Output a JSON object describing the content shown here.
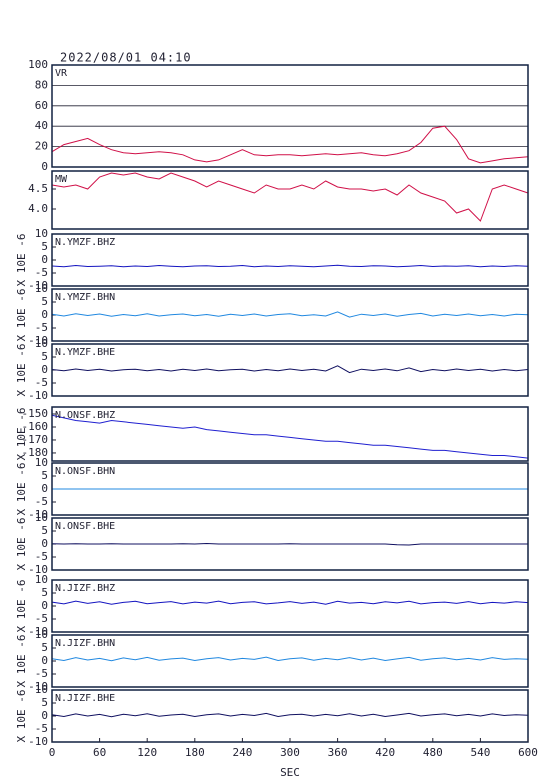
{
  "chart_data": [
    {
      "type": "line",
      "title": "2022/08/01 04:10",
      "label": "VR",
      "color": "#d01048",
      "grid": true,
      "x": [
        0,
        15,
        30,
        45,
        60,
        75,
        90,
        105,
        120,
        135,
        150,
        165,
        180,
        195,
        210,
        225,
        240,
        255,
        270,
        285,
        300,
        315,
        330,
        345,
        360,
        375,
        390,
        405,
        420,
        435,
        450,
        465,
        480,
        495,
        510,
        525,
        540,
        555,
        570,
        585,
        600
      ],
      "values": [
        15,
        22,
        25,
        28,
        22,
        17,
        14,
        13,
        14,
        15,
        14,
        12,
        7,
        5,
        7,
        12,
        17,
        12,
        11,
        12,
        12,
        11,
        12,
        13,
        12,
        13,
        14,
        12,
        11,
        13,
        16,
        24,
        38,
        40,
        27,
        8,
        4,
        6,
        8,
        9,
        10
      ],
      "xlim": [
        0,
        600
      ],
      "ylim": [
        0,
        100
      ],
      "yticks": [
        0,
        20,
        40,
        60,
        80,
        100
      ]
    },
    {
      "type": "line",
      "label": "MW",
      "color": "#d01048",
      "x": [
        0,
        15,
        30,
        45,
        60,
        75,
        90,
        105,
        120,
        135,
        150,
        165,
        180,
        195,
        210,
        225,
        240,
        255,
        270,
        285,
        300,
        315,
        330,
        345,
        360,
        375,
        390,
        405,
        420,
        435,
        450,
        465,
        480,
        495,
        510,
        525,
        540,
        555,
        570,
        585,
        600
      ],
      "values": [
        4.6,
        4.55,
        4.6,
        4.5,
        4.8,
        4.9,
        4.85,
        4.9,
        4.8,
        4.75,
        4.9,
        4.8,
        4.7,
        4.55,
        4.7,
        4.6,
        4.5,
        4.4,
        4.6,
        4.5,
        4.5,
        4.6,
        4.5,
        4.7,
        4.55,
        4.5,
        4.5,
        4.45,
        4.5,
        4.35,
        4.6,
        4.4,
        4.3,
        4.2,
        3.9,
        4.0,
        3.7,
        4.5,
        4.6,
        4.5,
        4.4
      ],
      "xlim": [
        0,
        600
      ],
      "ylim": [
        3.5,
        4.95
      ],
      "yticks": [
        {
          "value": 4.0,
          "label": "4.0"
        },
        4.5
      ]
    },
    {
      "type": "line",
      "label": "N.YMZF.BHZ",
      "ylabel": "X 10E -6",
      "color": "#1414c0",
      "x": [
        0,
        15,
        30,
        45,
        60,
        75,
        90,
        105,
        120,
        135,
        150,
        165,
        180,
        195,
        210,
        225,
        240,
        255,
        270,
        285,
        300,
        315,
        330,
        345,
        360,
        375,
        390,
        405,
        420,
        435,
        450,
        465,
        480,
        495,
        510,
        525,
        540,
        555,
        570,
        585,
        600
      ],
      "values": [
        -2.3,
        -2.6,
        -2.1,
        -2.5,
        -2.4,
        -2.2,
        -2.6,
        -2.3,
        -2.5,
        -2.1,
        -2.4,
        -2.6,
        -2.3,
        -2.2,
        -2.5,
        -2.4,
        -2.1,
        -2.6,
        -2.3,
        -2.5,
        -2.2,
        -2.4,
        -2.6,
        -2.3,
        -2.0,
        -2.4,
        -2.5,
        -2.2,
        -2.3,
        -2.6,
        -2.4,
        -2.1,
        -2.5,
        -2.3,
        -2.4,
        -2.2,
        -2.6,
        -2.3,
        -2.5,
        -2.2,
        -2.4
      ],
      "xlim": [
        0,
        600
      ],
      "ylim": [
        -10,
        10
      ],
      "yticks": [
        -10,
        -5,
        0,
        5,
        10
      ]
    },
    {
      "type": "line",
      "label": "N.YMZF.BHN",
      "ylabel": "X 10E -6",
      "color": "#2088e0",
      "x": [
        0,
        15,
        30,
        45,
        60,
        75,
        90,
        105,
        120,
        135,
        150,
        165,
        180,
        195,
        210,
        225,
        240,
        255,
        270,
        285,
        300,
        315,
        330,
        345,
        360,
        375,
        390,
        405,
        420,
        435,
        450,
        465,
        480,
        495,
        510,
        525,
        540,
        555,
        570,
        585,
        600
      ],
      "values": [
        0.3,
        -0.4,
        0.5,
        -0.2,
        0.4,
        -0.5,
        0.2,
        -0.3,
        0.5,
        -0.4,
        0.1,
        0.4,
        -0.3,
        0.2,
        -0.5,
        0.3,
        -0.2,
        0.4,
        -0.4,
        0.2,
        0.5,
        -0.3,
        0.1,
        -0.4,
        1.2,
        -0.8,
        0.3,
        -0.2,
        0.4,
        -0.5,
        0.2,
        0.6,
        -0.4,
        0.3,
        -0.2,
        0.4,
        -0.3,
        0.2,
        -0.4,
        0.3,
        0.1
      ],
      "xlim": [
        0,
        600
      ],
      "ylim": [
        -10,
        10
      ],
      "yticks": [
        -10,
        -5,
        0,
        5,
        10
      ]
    },
    {
      "type": "line",
      "label": "N.YMZF.BHE",
      "ylabel": "X 10E -6",
      "color": "#101060",
      "x": [
        0,
        15,
        30,
        45,
        60,
        75,
        90,
        105,
        120,
        135,
        150,
        165,
        180,
        195,
        210,
        225,
        240,
        255,
        270,
        285,
        300,
        315,
        330,
        345,
        360,
        375,
        390,
        405,
        420,
        435,
        450,
        465,
        480,
        495,
        510,
        525,
        540,
        555,
        570,
        585,
        600
      ],
      "values": [
        0.2,
        -0.3,
        0.4,
        -0.2,
        0.3,
        -0.4,
        0.1,
        0.3,
        -0.3,
        0.2,
        -0.4,
        0.3,
        -0.2,
        0.4,
        -0.3,
        0.1,
        0.3,
        -0.4,
        0.2,
        -0.3,
        0.4,
        -0.2,
        0.3,
        -0.4,
        1.6,
        -1.0,
        0.3,
        -0.2,
        0.4,
        -0.3,
        0.8,
        -0.6,
        0.2,
        -0.3,
        0.4,
        -0.2,
        0.3,
        -0.4,
        0.2,
        -0.3,
        0.2
      ],
      "xlim": [
        0,
        600
      ],
      "ylim": [
        -10,
        10
      ],
      "yticks": [
        -10,
        -5,
        0,
        5,
        10
      ]
    },
    {
      "type": "line",
      "label": "N.ONSF.BHZ",
      "ylabel": "X 10E -6",
      "color": "#2020d0",
      "x": [
        0,
        15,
        30,
        45,
        60,
        75,
        90,
        105,
        120,
        135,
        150,
        165,
        180,
        195,
        210,
        225,
        240,
        255,
        270,
        285,
        300,
        315,
        330,
        345,
        360,
        375,
        390,
        405,
        420,
        435,
        450,
        465,
        480,
        495,
        510,
        525,
        540,
        555,
        570,
        585,
        600
      ],
      "values": [
        -151,
        -153,
        -155,
        -156,
        -157,
        -155,
        -156,
        -157,
        -158,
        -159,
        -160,
        -161,
        -160,
        -162,
        -163,
        -164,
        -165,
        -166,
        -166,
        -167,
        -168,
        -169,
        -170,
        -171,
        -171,
        -172,
        -173,
        -174,
        -174,
        -175,
        -176,
        -177,
        -178,
        -178,
        -179,
        -180,
        -181,
        -182,
        -182,
        -183,
        -184
      ],
      "xlim": [
        0,
        600
      ],
      "ylim": [
        -186.2,
        -144.6
      ],
      "yticks": [
        -180,
        -170,
        -160,
        -150
      ]
    },
    {
      "type": "line",
      "label": "N.ONSF.BHN",
      "ylabel": "X 10E -6",
      "color": "#2088e0",
      "x": [
        0,
        15,
        30,
        45,
        60,
        75,
        90,
        105,
        120,
        135,
        150,
        165,
        180,
        195,
        210,
        225,
        240,
        255,
        270,
        285,
        300,
        315,
        330,
        345,
        360,
        375,
        390,
        405,
        420,
        435,
        450,
        465,
        480,
        495,
        510,
        525,
        540,
        555,
        570,
        585,
        600
      ],
      "values": [
        0,
        0,
        0,
        0,
        0,
        0,
        0,
        0,
        0,
        0,
        0,
        0,
        0,
        0,
        0,
        0,
        0,
        0,
        0,
        0,
        0,
        0,
        0,
        0,
        0,
        0,
        0,
        0,
        0,
        0,
        0,
        0,
        0,
        0,
        0,
        0,
        0,
        0,
        0,
        0,
        0
      ],
      "xlim": [
        0,
        600
      ],
      "ylim": [
        -10,
        10
      ],
      "yticks": [
        -10,
        -5,
        0,
        5,
        10
      ]
    },
    {
      "type": "line",
      "label": "N.ONSF.BHE",
      "ylabel": "X 10E -6",
      "color": "#101060",
      "x": [
        0,
        15,
        30,
        45,
        60,
        75,
        90,
        105,
        120,
        135,
        150,
        165,
        180,
        195,
        210,
        225,
        240,
        255,
        270,
        285,
        300,
        315,
        330,
        345,
        360,
        375,
        390,
        405,
        420,
        435,
        450,
        465,
        480,
        495,
        510,
        525,
        540,
        555,
        570,
        585,
        600
      ],
      "values": [
        0.1,
        0,
        0.1,
        0,
        0,
        0.1,
        0,
        0,
        0,
        0,
        0,
        0.1,
        0,
        0.2,
        0,
        0,
        0,
        0,
        0,
        0,
        0.1,
        0,
        0,
        0,
        0,
        0,
        0,
        0,
        0,
        -0.3,
        -0.4,
        0,
        0,
        0,
        0,
        0,
        0,
        0,
        0,
        0,
        0
      ],
      "xlim": [
        0,
        600
      ],
      "ylim": [
        -10,
        10
      ],
      "yticks": [
        -10,
        -5,
        0,
        5,
        10
      ]
    },
    {
      "type": "line",
      "label": "N.JIZF.BHZ",
      "ylabel": "X 10E -6",
      "color": "#1414c0",
      "x": [
        0,
        15,
        30,
        45,
        60,
        75,
        90,
        105,
        120,
        135,
        150,
        165,
        180,
        195,
        210,
        225,
        240,
        255,
        270,
        285,
        300,
        315,
        330,
        345,
        360,
        375,
        390,
        405,
        420,
        435,
        450,
        465,
        480,
        495,
        510,
        525,
        540,
        555,
        570,
        585,
        600
      ],
      "values": [
        1.5,
        0.8,
        1.9,
        1.0,
        1.6,
        0.7,
        1.4,
        1.8,
        0.9,
        1.3,
        1.7,
        0.8,
        1.5,
        1.1,
        1.9,
        0.9,
        1.4,
        1.6,
        0.8,
        1.2,
        1.7,
        1.0,
        1.5,
        0.7,
        1.8,
        1.1,
        1.4,
        0.9,
        1.6,
        1.2,
        1.8,
        0.8,
        1.3,
        1.5,
        1.0,
        1.7,
        0.9,
        1.4,
        1.1,
        1.6,
        1.3
      ],
      "xlim": [
        0,
        600
      ],
      "ylim": [
        -10,
        10
      ],
      "yticks": [
        -10,
        -5,
        0,
        5,
        10
      ]
    },
    {
      "type": "line",
      "label": "N.JIZF.BHN",
      "ylabel": "X 10E -6",
      "color": "#2088e0",
      "x": [
        0,
        15,
        30,
        45,
        60,
        75,
        90,
        105,
        120,
        135,
        150,
        165,
        180,
        195,
        210,
        225,
        240,
        255,
        270,
        285,
        300,
        315,
        330,
        345,
        360,
        375,
        390,
        405,
        420,
        435,
        450,
        465,
        480,
        495,
        510,
        525,
        540,
        555,
        570,
        585,
        600
      ],
      "values": [
        0.9,
        0.2,
        1.3,
        0.4,
        1.0,
        0.1,
        1.2,
        0.5,
        1.4,
        0.3,
        0.8,
        1.1,
        0.2,
        0.9,
        1.3,
        0.4,
        1.0,
        0.6,
        1.5,
        0.2,
        0.9,
        1.2,
        0.3,
        1.0,
        0.5,
        1.3,
        0.4,
        1.1,
        0.2,
        0.8,
        1.4,
        0.3,
        0.9,
        1.2,
        0.5,
        1.0,
        0.4,
        1.3,
        0.6,
        0.9,
        0.7
      ],
      "xlim": [
        0,
        600
      ],
      "ylim": [
        -10,
        10
      ],
      "yticks": [
        -10,
        -5,
        0,
        5,
        10
      ]
    },
    {
      "type": "line",
      "label": "N.JIZF.BHE",
      "ylabel": "X 10E -6",
      "color": "#101060",
      "x": [
        0,
        15,
        30,
        45,
        60,
        75,
        90,
        105,
        120,
        135,
        150,
        165,
        180,
        195,
        210,
        225,
        240,
        255,
        270,
        285,
        300,
        315,
        330,
        345,
        360,
        375,
        390,
        405,
        420,
        435,
        450,
        465,
        480,
        495,
        510,
        525,
        540,
        555,
        570,
        585,
        600
      ],
      "values": [
        0.5,
        -0.2,
        0.8,
        0.0,
        0.6,
        -0.3,
        0.7,
        0.1,
        0.9,
        -0.1,
        0.4,
        0.7,
        -0.2,
        0.5,
        0.8,
        0.0,
        0.6,
        0.2,
        1.0,
        -0.2,
        0.5,
        0.7,
        0.0,
        0.6,
        0.1,
        0.9,
        0.0,
        0.7,
        -0.2,
        0.4,
        1.0,
        0.0,
        0.5,
        0.8,
        0.1,
        0.6,
        0.0,
        0.8,
        0.2,
        0.5,
        0.3
      ],
      "xlim": [
        0,
        600
      ],
      "ylim": [
        -10,
        10
      ],
      "yticks": [
        -10,
        -5,
        0,
        5,
        10
      ],
      "xticks": [
        0,
        60,
        120,
        180,
        240,
        300,
        360,
        420,
        480,
        540,
        600
      ],
      "xlabel": "SEC"
    }
  ]
}
